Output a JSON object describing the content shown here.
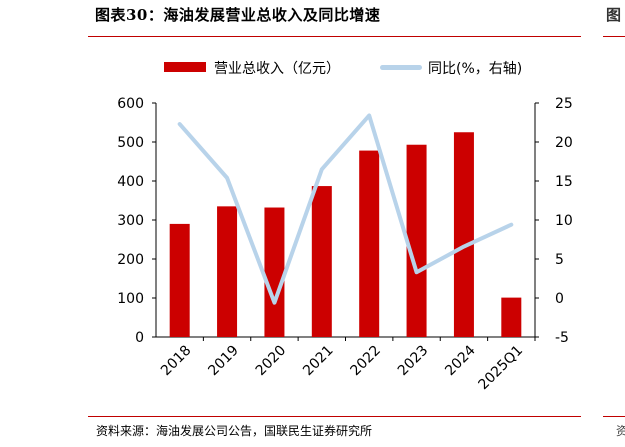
{
  "header": {
    "title": "图表30：海油发展营业总收入及同比增速",
    "right_fragment": "图"
  },
  "footer": {
    "source": "资料来源：海油发展公司公告，国联民生证券研究所",
    "right_fragment": "资"
  },
  "chart_data": {
    "type": "bar+line",
    "title": "海油发展营业总收入及同比增速",
    "categories": [
      "2018",
      "2019",
      "2020",
      "2021",
      "2022",
      "2023",
      "2024",
      "2025Q1"
    ],
    "series": [
      {
        "name": "营业总收入（亿元）",
        "type": "bar",
        "axis": "left",
        "color": "#cc0000",
        "values": [
          290,
          335,
          332,
          387,
          478,
          493,
          525,
          101
        ]
      },
      {
        "name": "同比(%，右轴)",
        "type": "line",
        "axis": "right",
        "color": "#b8d3ea",
        "values": [
          22.3,
          15.4,
          -0.6,
          16.5,
          23.4,
          3.3,
          6.6,
          9.4
        ]
      }
    ],
    "left_axis": {
      "min": 0,
      "max": 600,
      "step": 100,
      "ticks": [
        "0",
        "100",
        "200",
        "300",
        "400",
        "500",
        "600"
      ]
    },
    "right_axis": {
      "min": -5,
      "max": 25,
      "step": 5,
      "ticks": [
        "-5",
        "0",
        "5",
        "10",
        "15",
        "20",
        "25"
      ]
    },
    "legend_position": "top"
  }
}
